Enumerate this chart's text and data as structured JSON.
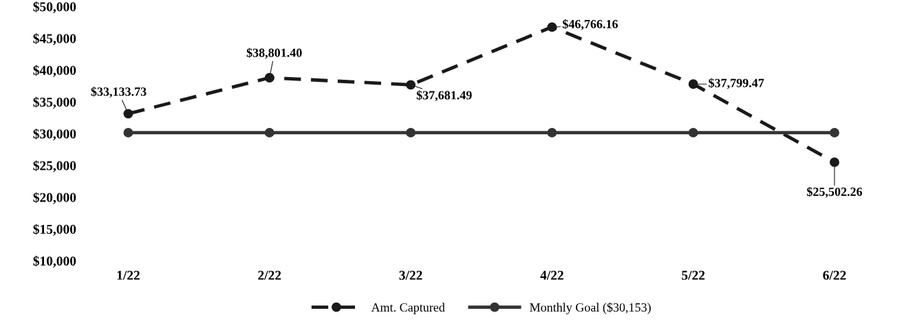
{
  "chart_data": {
    "type": "line",
    "categories": [
      "1/22",
      "2/22",
      "3/22",
      "4/22",
      "5/22",
      "6/22"
    ],
    "series": [
      {
        "name": "Amt. Captured",
        "color": "#1a1a1a",
        "line_style": "dashed",
        "values": [
          33133.73,
          38801.4,
          37681.49,
          46766.16,
          37799.47,
          25502.26
        ],
        "value_labels": [
          "$33,133.73",
          "$38,801.40",
          "$37,681.49",
          "$46,766.16",
          "$37,799.47",
          "$25,502.26"
        ]
      },
      {
        "name": "Monthly Goal ($30,153)",
        "color": "#333333",
        "line_style": "solid",
        "values": [
          30153,
          30153,
          30153,
          30153,
          30153,
          30153
        ]
      }
    ],
    "ylim": [
      10000,
      50000
    ],
    "yticks": [
      {
        "value": 10000,
        "label": "$10,000"
      },
      {
        "value": 15000,
        "label": "$15,000"
      },
      {
        "value": 20000,
        "label": "$20,000"
      },
      {
        "value": 25000,
        "label": "$25,000"
      },
      {
        "value": 30000,
        "label": "$30,000"
      },
      {
        "value": 35000,
        "label": "$35,000"
      },
      {
        "value": 40000,
        "label": "$40,000"
      },
      {
        "value": 45000,
        "label": "$45,000"
      },
      {
        "value": 50000,
        "label": "$50,000"
      }
    ],
    "marker": "circle",
    "grid": false,
    "legend": "bottom"
  }
}
